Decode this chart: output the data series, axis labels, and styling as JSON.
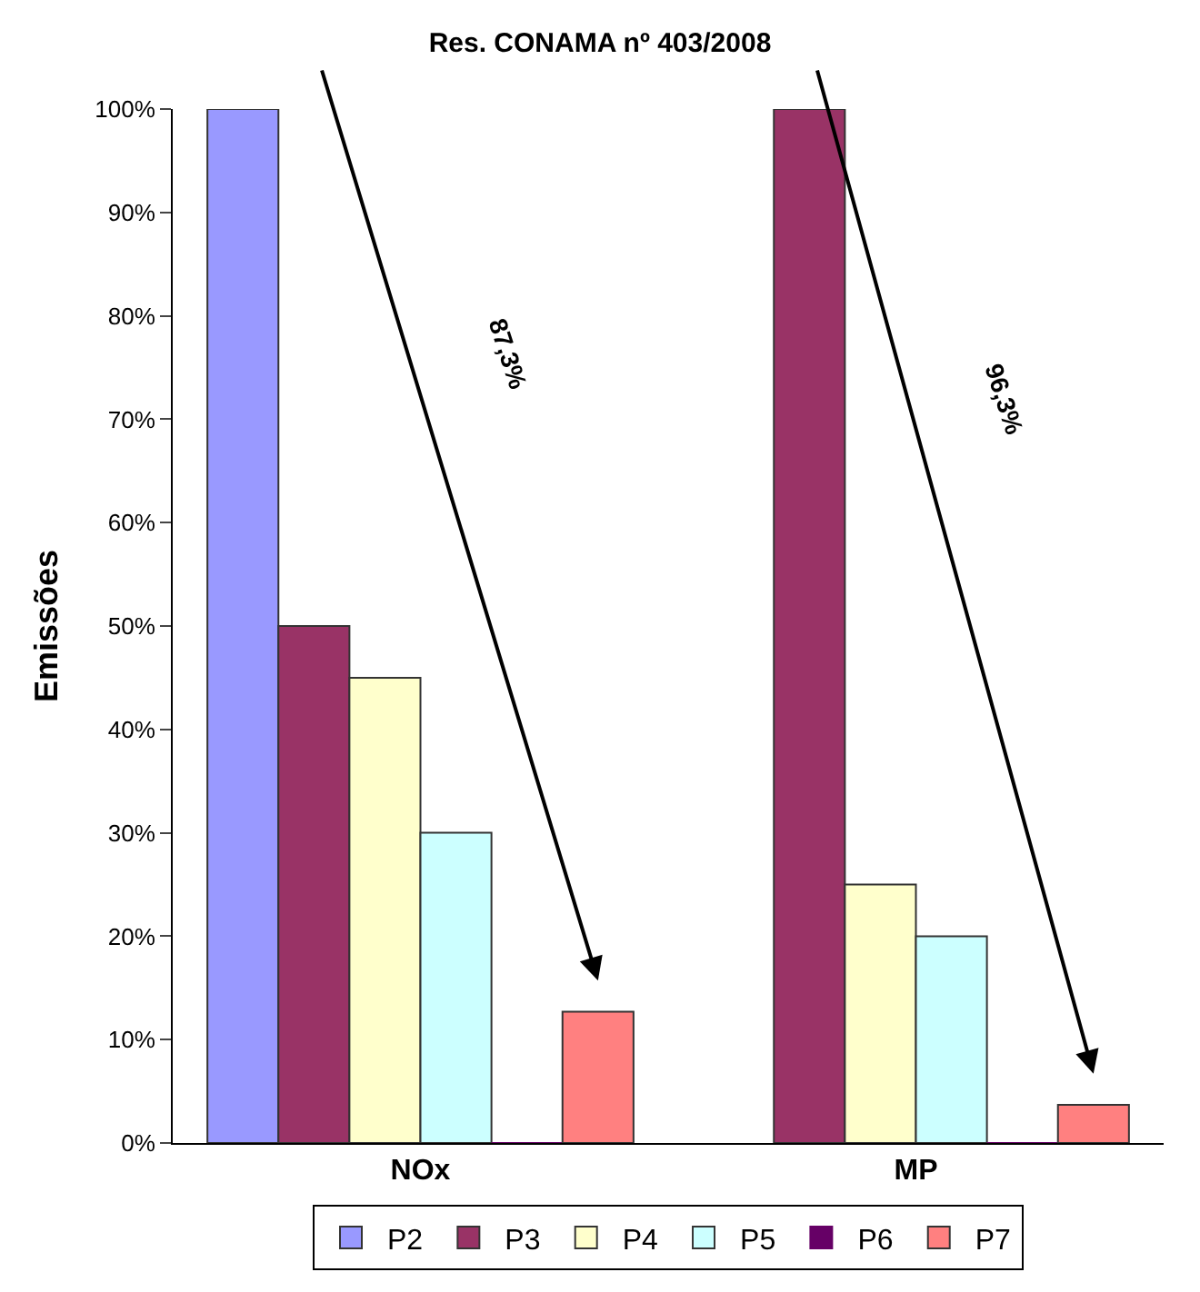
{
  "chart_data": {
    "type": "bar",
    "title": "Res. CONAMA nº 403/2008",
    "ylabel": "Emissões",
    "categories": [
      "NOx",
      "MP"
    ],
    "series": [
      {
        "name": "P2",
        "color": "#9999ff",
        "values": [
          100,
          null
        ]
      },
      {
        "name": "P3",
        "color": "#993366",
        "values": [
          50,
          100
        ]
      },
      {
        "name": "P4",
        "color": "#ffffcc",
        "values": [
          45,
          25
        ]
      },
      {
        "name": "P5",
        "color": "#ccffff",
        "values": [
          30,
          20
        ]
      },
      {
        "name": "P6",
        "color": "#660066",
        "values": [
          0,
          0
        ]
      },
      {
        "name": "P7",
        "color": "#ff8080",
        "values": [
          12.7,
          3.7
        ]
      }
    ],
    "ylim": [
      0,
      100
    ],
    "yticks": [
      {
        "value": 0,
        "label": "0%"
      },
      {
        "value": 10,
        "label": "10%"
      },
      {
        "value": 20,
        "label": "20%"
      },
      {
        "value": 30,
        "label": "30%"
      },
      {
        "value": 40,
        "label": "40%"
      },
      {
        "value": 50,
        "label": "50%"
      },
      {
        "value": 60,
        "label": "60%"
      },
      {
        "value": 70,
        "label": "70%"
      },
      {
        "value": 80,
        "label": "80%"
      },
      {
        "value": 90,
        "label": "90%"
      },
      {
        "value": 100,
        "label": "100%"
      }
    ],
    "annotations": [
      "87,3%",
      "96,3%"
    ],
    "legend": "bottom"
  }
}
